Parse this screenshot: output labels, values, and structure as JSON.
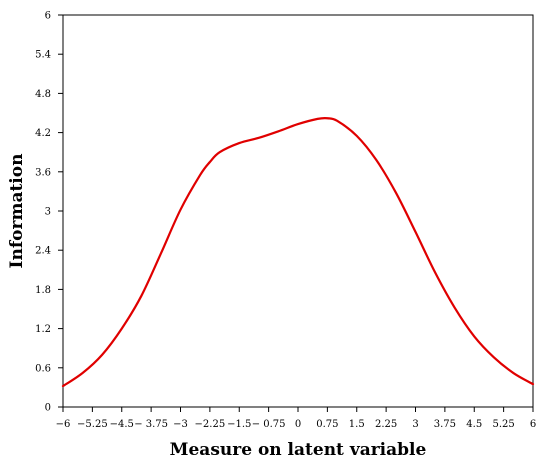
{
  "chart_data": {
    "type": "line",
    "title": "",
    "xlabel": "Measure on latent variable",
    "ylabel": "Information",
    "xlim": [
      -6,
      6
    ],
    "ylim": [
      0,
      6
    ],
    "x_ticks": [
      -6,
      -5.25,
      -4.5,
      -3.75,
      -3,
      -2.25,
      -1.5,
      -0.75,
      0,
      0.75,
      1.5,
      2.25,
      3,
      3.75,
      4.5,
      5.25,
      6
    ],
    "x_tick_labels": [
      "−6",
      "−5.25",
      "−4.5",
      "− 3.75",
      "−3",
      "−2.25",
      "−1.5",
      "− 0.75",
      "0",
      "0.75",
      "1.5",
      "2.25",
      "3",
      "3.75",
      "4.5",
      "5.25",
      "6"
    ],
    "y_ticks": [
      0,
      0.6,
      1.2,
      1.8,
      2.4,
      3,
      3.6,
      4.2,
      4.8,
      5.4,
      6
    ],
    "y_tick_labels": [
      "0",
      "0.6",
      "1.2",
      "1.8",
      "2.4",
      "3",
      "3.6",
      "4.2",
      "4.8",
      "5.4",
      "6"
    ],
    "grid": false,
    "legend": "none",
    "series": [
      {
        "color": "#e00000",
        "x": [
          -6,
          -5.5,
          -5,
          -4.5,
          -4,
          -3.5,
          -3,
          -2.5,
          -2.25,
          -2,
          -1.5,
          -1,
          -0.5,
          0,
          0.5,
          0.75,
          1,
          1.5,
          2,
          2.5,
          3,
          3.5,
          4,
          4.5,
          5,
          5.5,
          6
        ],
        "y": [
          0.32,
          0.52,
          0.8,
          1.2,
          1.7,
          2.35,
          3.02,
          3.55,
          3.75,
          3.9,
          4.04,
          4.12,
          4.22,
          4.33,
          4.41,
          4.42,
          4.38,
          4.15,
          3.78,
          3.28,
          2.68,
          2.06,
          1.52,
          1.08,
          0.76,
          0.52,
          0.35
        ]
      }
    ]
  }
}
